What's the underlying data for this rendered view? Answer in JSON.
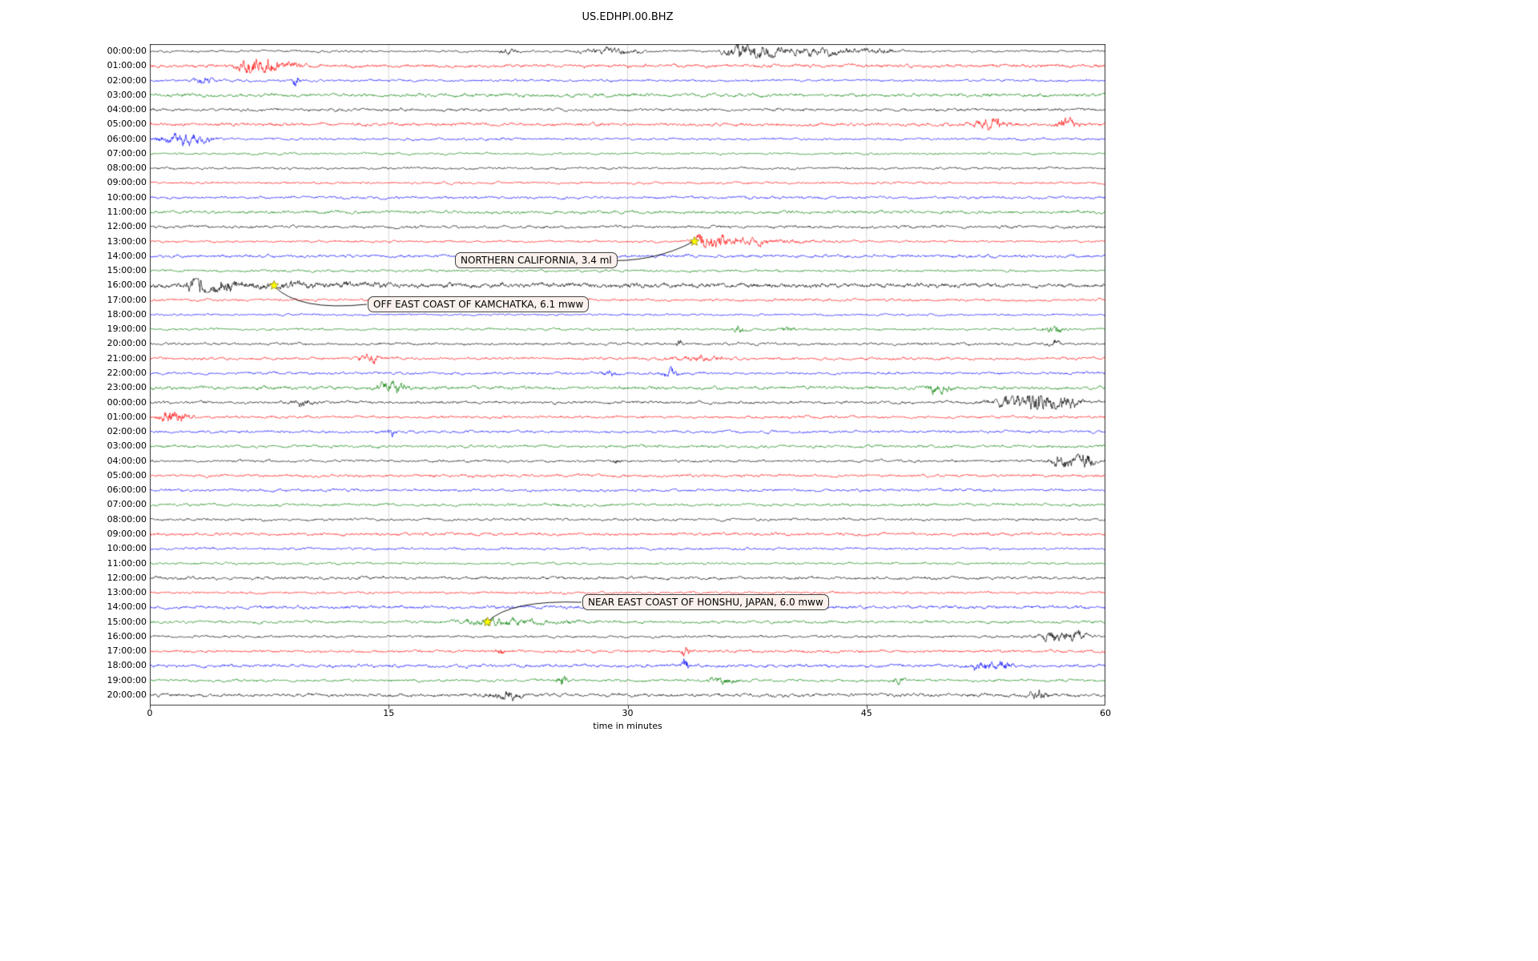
{
  "title": "US.EDHPI.00.BHZ",
  "chart_data": {
    "type": "line",
    "subtype": "seismogram-helicorder-dayplot",
    "title": "US.EDHPI.00.BHZ",
    "xlabel": "time in minutes",
    "xlim": [
      0,
      60
    ],
    "x_ticks": [
      0,
      15,
      30,
      45,
      60
    ],
    "row_duration_minutes": 60,
    "grid": "vertical at 15, 30, 45",
    "trace_colors": [
      "#000000",
      "#ff0000",
      "#0000ff",
      "#008000"
    ],
    "rows": [
      "00:00:00",
      "01:00:00",
      "02:00:00",
      "03:00:00",
      "04:00:00",
      "05:00:00",
      "06:00:00",
      "07:00:00",
      "08:00:00",
      "09:00:00",
      "10:00:00",
      "11:00:00",
      "12:00:00",
      "13:00:00",
      "14:00:00",
      "15:00:00",
      "16:00:00",
      "17:00:00",
      "18:00:00",
      "19:00:00",
      "20:00:00",
      "21:00:00",
      "22:00:00",
      "23:00:00",
      "00:00:00",
      "01:00:00",
      "02:00:00",
      "03:00:00",
      "04:00:00",
      "05:00:00",
      "06:00:00",
      "07:00:00",
      "08:00:00",
      "09:00:00",
      "10:00:00",
      "11:00:00",
      "12:00:00",
      "13:00:00",
      "14:00:00",
      "15:00:00",
      "16:00:00",
      "17:00:00",
      "18:00:00",
      "19:00:00",
      "20:00:00"
    ],
    "events": [
      {
        "label": "NORTHERN CALIFORNIA, 3.4 ml",
        "row": 13,
        "minute": 34.2
      },
      {
        "label": "OFF EAST COAST OF KAMCHATKA, 6.1 mww",
        "row": 16,
        "minute": 7.8
      },
      {
        "label": "NEAR EAST COAST OF HONSHU, JAPAN, 6.0 mww",
        "row": 39,
        "minute": 21.2
      }
    ],
    "marker_color": "#ffff00",
    "bursts": [
      {
        "row": 0,
        "m": 22.5,
        "a": 2,
        "w": 0.4
      },
      {
        "row": 0,
        "m": 29,
        "a": 2.5,
        "w": 1.2
      },
      {
        "row": 0,
        "m": 36.8,
        "a": 7,
        "w": 0.5
      },
      {
        "row": 0,
        "m": 38.2,
        "a": 5,
        "w": 0.8
      },
      {
        "row": 0,
        "m": 40.5,
        "a": 2.5,
        "w": 1.5
      },
      {
        "row": 0,
        "m": 43,
        "a": 3,
        "w": 0.8
      },
      {
        "row": 0,
        "m": 45.5,
        "a": 2.2,
        "w": 0.8
      },
      {
        "row": 1,
        "m": 6.3,
        "a": 5,
        "w": 0.5
      },
      {
        "row": 1,
        "m": 7.4,
        "a": 4,
        "w": 0.6
      },
      {
        "row": 1,
        "m": 9,
        "a": 2,
        "w": 0.4
      },
      {
        "row": 2,
        "m": 3.5,
        "a": 2.5,
        "w": 0.4
      },
      {
        "row": 2,
        "m": 9.2,
        "a": 7,
        "w": 0.12
      },
      {
        "row": 5,
        "m": 52.8,
        "a": 3,
        "w": 0.7
      },
      {
        "row": 5,
        "m": 57.6,
        "a": 4,
        "w": 0.4
      },
      {
        "row": 6,
        "m": 1.3,
        "a": 3,
        "w": 0.6
      },
      {
        "row": 6,
        "m": 2.4,
        "a": 4,
        "w": 0.5
      },
      {
        "row": 6,
        "m": 3.4,
        "a": 2.5,
        "w": 0.4
      },
      {
        "row": 13,
        "m": 34.6,
        "a": 4,
        "w": 0.3
      },
      {
        "row": 13,
        "m": 35.4,
        "a": 5,
        "w": 0.6
      },
      {
        "row": 13,
        "m": 37,
        "a": 2,
        "w": 1.2
      },
      {
        "row": 13,
        "m": 40,
        "a": 1,
        "w": 2
      },
      {
        "row": 16,
        "m": 3,
        "a": 5,
        "w": 0.4
      },
      {
        "row": 16,
        "m": 4.5,
        "a": 3,
        "w": 0.8
      },
      {
        "row": 16,
        "m": 8.5,
        "a": 1,
        "w": 5
      },
      {
        "row": 16,
        "m": 30,
        "a": 0.6,
        "w": 20
      },
      {
        "row": 19,
        "m": 37,
        "a": 3,
        "w": 0.25
      },
      {
        "row": 19,
        "m": 40,
        "a": 2.5,
        "w": 0.3
      },
      {
        "row": 19,
        "m": 56.8,
        "a": 3,
        "w": 0.5
      },
      {
        "row": 20,
        "m": 33.2,
        "a": 3,
        "w": 0.2
      },
      {
        "row": 20,
        "m": 56.8,
        "a": 3,
        "w": 0.2
      },
      {
        "row": 21,
        "m": 13.8,
        "a": 3.5,
        "w": 0.5
      },
      {
        "row": 21,
        "m": 34.5,
        "a": 1.5,
        "w": 1
      },
      {
        "row": 22,
        "m": 28.9,
        "a": 2,
        "w": 0.3
      },
      {
        "row": 22,
        "m": 32.7,
        "a": 3,
        "w": 0.4
      },
      {
        "row": 23,
        "m": 15.2,
        "a": 4,
        "w": 0.6
      },
      {
        "row": 23,
        "m": 49.5,
        "a": 3,
        "w": 0.5
      },
      {
        "row": 24,
        "m": 9.5,
        "a": 2.5,
        "w": 0.4
      },
      {
        "row": 24,
        "m": 54,
        "a": 4,
        "w": 0.8
      },
      {
        "row": 24,
        "m": 55.6,
        "a": 7,
        "w": 0.5
      },
      {
        "row": 24,
        "m": 57,
        "a": 5,
        "w": 0.9
      },
      {
        "row": 25,
        "m": 1.2,
        "a": 5,
        "w": 0.4
      },
      {
        "row": 25,
        "m": 2,
        "a": 4,
        "w": 0.4
      },
      {
        "row": 26,
        "m": 15.2,
        "a": 3.5,
        "w": 0.2
      },
      {
        "row": 28,
        "m": 29.3,
        "a": 2,
        "w": 0.2
      },
      {
        "row": 28,
        "m": 57.3,
        "a": 5,
        "w": 0.5
      },
      {
        "row": 28,
        "m": 58.6,
        "a": 6,
        "w": 0.5
      },
      {
        "row": 39,
        "m": 21.6,
        "a": 2,
        "w": 1.5
      },
      {
        "row": 39,
        "m": 24,
        "a": 1,
        "w": 2
      },
      {
        "row": 40,
        "m": 56.9,
        "a": 4,
        "w": 0.7
      },
      {
        "row": 40,
        "m": 58.2,
        "a": 3,
        "w": 0.5
      },
      {
        "row": 41,
        "m": 22,
        "a": 2,
        "w": 0.3
      },
      {
        "row": 41,
        "m": 33.6,
        "a": 3,
        "w": 0.2
      },
      {
        "row": 42,
        "m": 33.6,
        "a": 6,
        "w": 0.12
      },
      {
        "row": 42,
        "m": 52.3,
        "a": 3,
        "w": 0.5
      },
      {
        "row": 42,
        "m": 53.6,
        "a": 2.5,
        "w": 0.4
      },
      {
        "row": 43,
        "m": 25.9,
        "a": 4,
        "w": 0.2
      },
      {
        "row": 43,
        "m": 36,
        "a": 2.5,
        "w": 0.5
      },
      {
        "row": 43,
        "m": 47,
        "a": 2.5,
        "w": 0.3
      },
      {
        "row": 44,
        "m": 22.3,
        "a": 3,
        "w": 0.6
      },
      {
        "row": 44,
        "m": 55.8,
        "a": 2.5,
        "w": 0.4
      }
    ]
  }
}
